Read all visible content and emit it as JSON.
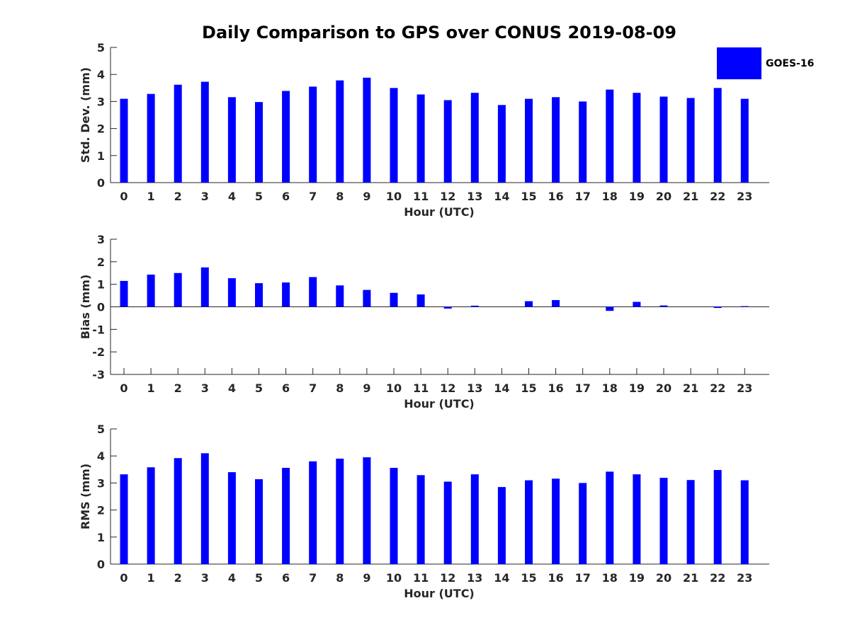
{
  "chart_data": {
    "title": "Daily Comparison to GPS over CONUS 2019-08-09",
    "type": "bar",
    "legend": {
      "label": "GOES-16",
      "color": "#0000ff",
      "placement": "top-right"
    },
    "color": "#0000ff",
    "categories": [
      "0",
      "1",
      "2",
      "3",
      "4",
      "5",
      "6",
      "7",
      "8",
      "9",
      "10",
      "11",
      "12",
      "13",
      "14",
      "15",
      "16",
      "17",
      "18",
      "19",
      "20",
      "21",
      "22",
      "23"
    ],
    "panels": [
      {
        "ylabel": "Std. Dev. (mm)",
        "xlabel": "Hour (UTC)",
        "ylim": [
          0,
          5
        ],
        "yticks": [
          "0",
          "1",
          "2",
          "3",
          "4",
          "5"
        ],
        "values": [
          3.1,
          3.28,
          3.62,
          3.73,
          3.16,
          2.98,
          3.39,
          3.55,
          3.78,
          3.88,
          3.5,
          3.26,
          3.05,
          3.32,
          2.87,
          3.1,
          3.16,
          3.0,
          3.44,
          3.32,
          3.18,
          3.13,
          3.5,
          3.1
        ]
      },
      {
        "ylabel": "Bias (mm)",
        "xlabel": "Hour (UTC)",
        "ylim": [
          -3,
          3
        ],
        "yticks": [
          "-3",
          "-2",
          "-1",
          "0",
          "1",
          "2",
          "3"
        ],
        "values": [
          1.15,
          1.43,
          1.5,
          1.75,
          1.27,
          1.05,
          1.08,
          1.32,
          0.95,
          0.75,
          0.62,
          0.55,
          -0.08,
          0.05,
          0.0,
          0.25,
          0.3,
          0.0,
          -0.18,
          0.22,
          0.06,
          0.0,
          -0.05,
          0.03
        ]
      },
      {
        "ylabel": "RMS (mm)",
        "xlabel": "Hour (UTC)",
        "ylim": [
          0,
          5
        ],
        "yticks": [
          "0",
          "1",
          "2",
          "3",
          "4",
          "5"
        ],
        "values": [
          3.32,
          3.58,
          3.92,
          4.1,
          3.4,
          3.14,
          3.56,
          3.8,
          3.9,
          3.95,
          3.56,
          3.29,
          3.05,
          3.32,
          2.85,
          3.1,
          3.16,
          3.0,
          3.42,
          3.32,
          3.19,
          3.11,
          3.48,
          3.1
        ]
      }
    ]
  }
}
